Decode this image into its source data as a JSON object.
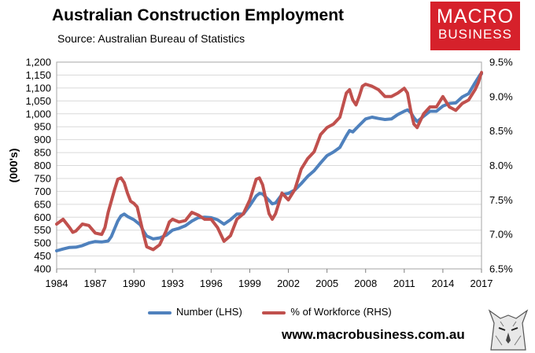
{
  "header": {
    "title": "Australian Construction Employment",
    "subtitle": "Source: Australian Bureau of Statistics"
  },
  "logo": {
    "line1": "MACRO",
    "line2": "BUSINESS",
    "color": "#d6212b"
  },
  "footer": {
    "website": "www.macrobusiness.com.au"
  },
  "chart_data": {
    "type": "line",
    "title": "Australian Construction Employment",
    "ylabel": "(000's)",
    "y2label": "",
    "ylim": [
      400,
      1200
    ],
    "yticks": [
      "1,200",
      "1,150",
      "1,100",
      "1,050",
      "1,000",
      "950",
      "900",
      "850",
      "800",
      "750",
      "700",
      "650",
      "600",
      "550",
      "500",
      "450",
      "400"
    ],
    "y2lim": [
      6.5,
      9.5
    ],
    "y2ticks": [
      "9.5%",
      "9.0%",
      "8.5%",
      "8.0%",
      "7.5%",
      "7.0%",
      "6.5%"
    ],
    "xlim": [
      1984,
      2017
    ],
    "xticks": [
      "1984",
      "1987",
      "1990",
      "1993",
      "1996",
      "1999",
      "2002",
      "2005",
      "2008",
      "2011",
      "2014",
      "2017"
    ],
    "grid": true,
    "legend": "bottom",
    "series": [
      {
        "name": "Number (LHS)",
        "axis": "left",
        "color": "#4f81bd",
        "points": [
          [
            1984,
            470
          ],
          [
            1984.5,
            477
          ],
          [
            1985,
            483
          ],
          [
            1985.5,
            484
          ],
          [
            1986,
            490
          ],
          [
            1986.5,
            500
          ],
          [
            1987,
            506
          ],
          [
            1987.5,
            504
          ],
          [
            1988,
            508
          ],
          [
            1988.25,
            525
          ],
          [
            1988.5,
            555
          ],
          [
            1988.75,
            585
          ],
          [
            1989,
            605
          ],
          [
            1989.25,
            612
          ],
          [
            1989.5,
            603
          ],
          [
            1990,
            590
          ],
          [
            1990.5,
            570
          ],
          [
            1990.75,
            545
          ],
          [
            1991,
            527
          ],
          [
            1991.5,
            516
          ],
          [
            1992,
            520
          ],
          [
            1992.5,
            530
          ],
          [
            1993,
            550
          ],
          [
            1993.5,
            557
          ],
          [
            1994,
            567
          ],
          [
            1994.5,
            585
          ],
          [
            1995,
            598
          ],
          [
            1995.5,
            600
          ],
          [
            1996,
            598
          ],
          [
            1996.5,
            590
          ],
          [
            1997,
            573
          ],
          [
            1997.5,
            590
          ],
          [
            1998,
            612
          ],
          [
            1998.5,
            612
          ],
          [
            1999,
            645
          ],
          [
            1999.5,
            682
          ],
          [
            1999.75,
            692
          ],
          [
            2000,
            690
          ],
          [
            2000.5,
            665
          ],
          [
            2000.75,
            652
          ],
          [
            2001,
            655
          ],
          [
            2001.5,
            688
          ],
          [
            2002,
            692
          ],
          [
            2002.5,
            705
          ],
          [
            2003,
            730
          ],
          [
            2003.5,
            758
          ],
          [
            2004,
            780
          ],
          [
            2004.5,
            810
          ],
          [
            2005,
            838
          ],
          [
            2005.5,
            852
          ],
          [
            2006,
            870
          ],
          [
            2006.5,
            915
          ],
          [
            2006.75,
            935
          ],
          [
            2007,
            930
          ],
          [
            2007.5,
            955
          ],
          [
            2008,
            980
          ],
          [
            2008.5,
            987
          ],
          [
            2009,
            982
          ],
          [
            2009.5,
            978
          ],
          [
            2010,
            980
          ],
          [
            2010.5,
            997
          ],
          [
            2011,
            1010
          ],
          [
            2011.25,
            1015
          ],
          [
            2011.5,
            1005
          ],
          [
            2011.75,
            985
          ],
          [
            2012,
            970
          ],
          [
            2012.5,
            990
          ],
          [
            2013,
            1010
          ],
          [
            2013.5,
            1010
          ],
          [
            2014,
            1030
          ],
          [
            2014.5,
            1040
          ],
          [
            2015,
            1042
          ],
          [
            2015.5,
            1065
          ],
          [
            2016,
            1078
          ],
          [
            2016.5,
            1120
          ],
          [
            2016.9,
            1152
          ],
          [
            2017,
            1155
          ]
        ]
      },
      {
        "name": "% of Workforce (RHS)",
        "axis": "right",
        "color": "#c0504d",
        "points": [
          [
            1984,
            7.15
          ],
          [
            1984.5,
            7.22
          ],
          [
            1985,
            7.1
          ],
          [
            1985.25,
            7.03
          ],
          [
            1985.5,
            7.05
          ],
          [
            1986,
            7.15
          ],
          [
            1986.5,
            7.13
          ],
          [
            1987,
            7.02
          ],
          [
            1987.5,
            7.0
          ],
          [
            1987.75,
            7.1
          ],
          [
            1988,
            7.32
          ],
          [
            1988.5,
            7.65
          ],
          [
            1988.75,
            7.8
          ],
          [
            1989,
            7.82
          ],
          [
            1989.25,
            7.75
          ],
          [
            1989.5,
            7.6
          ],
          [
            1989.75,
            7.48
          ],
          [
            1990,
            7.45
          ],
          [
            1990.25,
            7.4
          ],
          [
            1990.5,
            7.2
          ],
          [
            1990.75,
            7.0
          ],
          [
            1991,
            6.82
          ],
          [
            1991.5,
            6.78
          ],
          [
            1992,
            6.85
          ],
          [
            1992.5,
            7.05
          ],
          [
            1992.75,
            7.18
          ],
          [
            1993,
            7.22
          ],
          [
            1993.5,
            7.18
          ],
          [
            1994,
            7.2
          ],
          [
            1994.5,
            7.32
          ],
          [
            1995,
            7.28
          ],
          [
            1995.5,
            7.22
          ],
          [
            1996,
            7.22
          ],
          [
            1996.5,
            7.1
          ],
          [
            1997,
            6.9
          ],
          [
            1997.5,
            6.98
          ],
          [
            1998,
            7.22
          ],
          [
            1998.5,
            7.3
          ],
          [
            1999,
            7.5
          ],
          [
            1999.5,
            7.8
          ],
          [
            1999.75,
            7.82
          ],
          [
            2000,
            7.72
          ],
          [
            2000.5,
            7.3
          ],
          [
            2000.75,
            7.22
          ],
          [
            2001,
            7.3
          ],
          [
            2001.5,
            7.6
          ],
          [
            2002,
            7.5
          ],
          [
            2002.5,
            7.65
          ],
          [
            2003,
            7.95
          ],
          [
            2003.5,
            8.1
          ],
          [
            2004,
            8.2
          ],
          [
            2004.5,
            8.45
          ],
          [
            2005,
            8.55
          ],
          [
            2005.5,
            8.6
          ],
          [
            2006,
            8.7
          ],
          [
            2006.5,
            9.05
          ],
          [
            2006.75,
            9.1
          ],
          [
            2007,
            8.95
          ],
          [
            2007.25,
            8.88
          ],
          [
            2007.5,
            9.0
          ],
          [
            2007.75,
            9.15
          ],
          [
            2008,
            9.18
          ],
          [
            2008.5,
            9.15
          ],
          [
            2009,
            9.1
          ],
          [
            2009.5,
            9.0
          ],
          [
            2010,
            9.0
          ],
          [
            2010.5,
            9.05
          ],
          [
            2011,
            9.12
          ],
          [
            2011.25,
            9.05
          ],
          [
            2011.5,
            8.8
          ],
          [
            2011.75,
            8.6
          ],
          [
            2012,
            8.55
          ],
          [
            2012.5,
            8.75
          ],
          [
            2013,
            8.85
          ],
          [
            2013.5,
            8.85
          ],
          [
            2014,
            9.0
          ],
          [
            2014.5,
            8.85
          ],
          [
            2015,
            8.8
          ],
          [
            2015.5,
            8.9
          ],
          [
            2016,
            8.95
          ],
          [
            2016.5,
            9.1
          ],
          [
            2016.75,
            9.2
          ],
          [
            2017,
            9.35
          ]
        ]
      }
    ]
  }
}
